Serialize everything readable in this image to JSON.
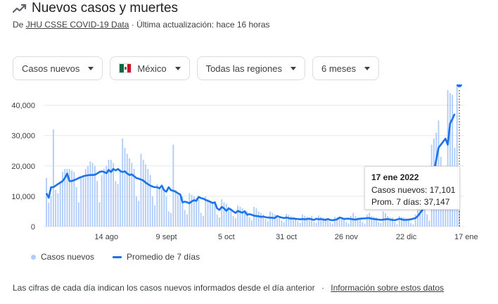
{
  "header": {
    "title": "Nuevos casos y muertes",
    "source_prefix": "De",
    "source_link": "JHU CSSE COVID-19 Data",
    "source_separator": "·",
    "updated": "Última actualización: hace 16 horas"
  },
  "filters": {
    "metric": "Casos nuevos",
    "country": "México",
    "region": "Todas las regiones",
    "period": "6 meses"
  },
  "tooltip": {
    "date": "17 ene 2022",
    "cases_line": "Casos nuevos: 17,101",
    "avg_line": "Prom. 7 días: 37,147"
  },
  "legend": {
    "bars_label": "Casos nuevos",
    "line_label": "Promedio de 7 días"
  },
  "footer": {
    "note": "Las cifras de cada día indican los casos nuevos informados desde el día anterior",
    "separator": "·",
    "link": "Información sobre estos datos"
  },
  "colors": {
    "bars": "#aecbfa",
    "line": "#1a73e8",
    "grid": "#e8eaed"
  },
  "chart_data": {
    "type": "bar",
    "ylim": [
      0,
      45000
    ],
    "yticks": [
      0,
      10000,
      20000,
      30000,
      40000
    ],
    "ytick_labels": [
      "0",
      "10,000",
      "20,000",
      "30,000",
      "40,000"
    ],
    "xticks": [
      {
        "label": "14 ago",
        "index": 26
      },
      {
        "label": "9 sept",
        "index": 52
      },
      {
        "label": "5 oct",
        "index": 78
      },
      {
        "label": "31 oct",
        "index": 104
      },
      {
        "label": "26 nov",
        "index": 130
      },
      {
        "label": "22 dic",
        "index": 156
      },
      {
        "label": "17 ene",
        "index": 182
      }
    ],
    "series": [
      {
        "name": "Casos nuevos",
        "type": "bar",
        "values": [
          16000,
          8000,
          10000,
          32000,
          12000,
          11000,
          15000,
          18000,
          19000,
          19000,
          19000,
          18500,
          18000,
          13000,
          8000,
          16000,
          17000,
          19000,
          20000,
          21500,
          21000,
          20000,
          15000,
          8000,
          17000,
          19000,
          20000,
          22000,
          22000,
          21000,
          15000,
          14000,
          19000,
          29000,
          26000,
          24000,
          22500,
          21000,
          19000,
          10000,
          8500,
          24000,
          22000,
          20500,
          19000,
          17000,
          10000,
          7000,
          14000,
          13000,
          12500,
          12000,
          10000,
          5000,
          4500,
          27000,
          12000,
          10500,
          9500,
          10000,
          5500,
          4000,
          11000,
          10500,
          10000,
          9500,
          9000,
          4500,
          3500,
          10000,
          9000,
          8500,
          8000,
          7500,
          4000,
          3000,
          9000,
          8000,
          7500,
          6500,
          6000,
          3500,
          2800,
          7000,
          6500,
          6000,
          5500,
          5000,
          3000,
          2000,
          6500,
          6000,
          5000,
          4500,
          4000,
          2500,
          1800,
          5000,
          4500,
          4000,
          3500,
          3500,
          2000,
          1500,
          4200,
          3800,
          3500,
          3200,
          3000,
          1800,
          1200,
          4000,
          3600,
          3200,
          3000,
          3500,
          1500,
          1200,
          3600,
          3200,
          3000,
          2800,
          2600,
          1500,
          1000,
          3200,
          3000,
          2800,
          2600,
          2500,
          1500,
          1000,
          3500,
          4500,
          3500,
          3000,
          2800,
          1500,
          1000,
          4000,
          4500,
          3500,
          3200,
          3000,
          1500,
          1200,
          5000,
          4500,
          3500,
          3000,
          3000,
          1500,
          800,
          3500,
          3200,
          3000,
          2800,
          2600,
          1200,
          700,
          4000,
          6000,
          8000,
          10000,
          12000,
          4000,
          2000,
          27000,
          29000,
          31000,
          35000,
          23000,
          17000,
          20000,
          45000,
          44000,
          43500,
          26000,
          47000,
          17101
        ]
      },
      {
        "name": "Promedio de 7 días",
        "type": "line",
        "values": [
          11000,
          9500,
          13000,
          13000,
          13500,
          14000,
          14500,
          15000,
          16000,
          17500,
          15000,
          15000,
          15300,
          15600,
          16000,
          16300,
          16600,
          16800,
          16900,
          17000,
          17000,
          17100,
          17500,
          18000,
          18200,
          18000,
          17600,
          18700,
          18000,
          19000,
          18500,
          19000,
          18300,
          18000,
          18200,
          17500,
          17000,
          17200,
          16600,
          16000,
          15800,
          15500,
          15200,
          14500,
          14000,
          13500,
          13200,
          13000,
          13000,
          12600,
          13500,
          12000,
          11500,
          13000,
          12000,
          11800,
          11500,
          11000,
          10600,
          8000,
          8200,
          8000,
          7700,
          8300,
          8700,
          8500,
          9800,
          9400,
          9200,
          8800,
          8500,
          8200,
          7800,
          8000,
          6000,
          5500,
          6500,
          6000,
          5200,
          6000,
          5600,
          5000,
          4500,
          5200,
          4800,
          4600,
          5000,
          3900,
          4100,
          3900,
          3600,
          3500,
          3400,
          3200,
          3300,
          3100,
          3000,
          2950,
          2900,
          2800,
          3500,
          3200,
          3000,
          2800,
          3000,
          2800,
          2600,
          2700,
          2500,
          2500,
          2400,
          2500,
          2400,
          2500,
          2600,
          2400,
          2200,
          2600,
          2400,
          2500,
          2300,
          2200,
          2500,
          2200,
          2100,
          2200,
          2400,
          3000,
          2800,
          2500,
          2600,
          2600,
          2500,
          2400,
          2300,
          2500,
          2600,
          2700,
          2700,
          2800,
          2800,
          2600,
          2500,
          2400,
          2300,
          2200,
          2300,
          2400,
          2500,
          2300,
          2200,
          2100,
          2300,
          2600,
          2400,
          2200,
          2200,
          2300,
          2400,
          2600,
          2800,
          3500,
          4500,
          5500,
          6500,
          7500,
          10000,
          13000,
          18000,
          22000,
          26000,
          27000,
          28000,
          29000,
          27000,
          34000,
          35500,
          37147
        ]
      }
    ]
  }
}
